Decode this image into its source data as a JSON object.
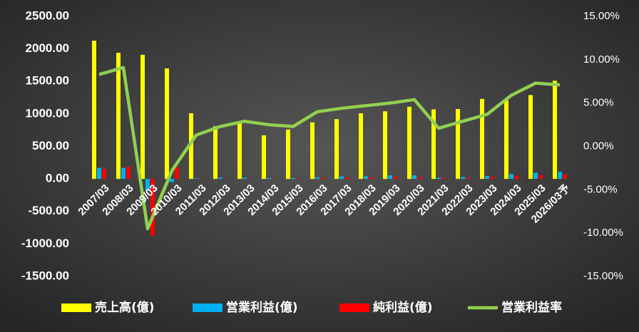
{
  "chart_data": {
    "type": "bar",
    "categories": [
      "2007/03",
      "2008/03",
      "2009/03",
      "2010/03",
      "2011/03",
      "2012/03",
      "2013/03",
      "2014/03",
      "2015/03",
      "2016/03",
      "2017/03",
      "2018/03",
      "2019/03",
      "2020/03",
      "2021/03",
      "2022/03",
      "2023/03",
      "2024/03",
      "2025/03",
      "2026/03予"
    ],
    "series": [
      {
        "name": "売上高(億)",
        "type": "bar",
        "color": "#ffff00",
        "values": [
          2125,
          1940,
          1910,
          1700,
          1010,
          810,
          880,
          670,
          760,
          870,
          920,
          1010,
          1040,
          1110,
          1070,
          1075,
          1230,
          1210,
          1290,
          1510
        ]
      },
      {
        "name": "営業利益(億)",
        "type": "bar",
        "color": "#00b0f0",
        "values": [
          170,
          170,
          -180,
          -50,
          10,
          20,
          20,
          15,
          15,
          25,
          40,
          40,
          55,
          55,
          20,
          30,
          45,
          75,
          95,
          110
        ]
      },
      {
        "name": "純利益(億)",
        "type": "bar",
        "color": "#ff0000",
        "values": [
          155,
          190,
          -870,
          180,
          5,
          5,
          5,
          5,
          10,
          20,
          25,
          25,
          35,
          30,
          15,
          20,
          35,
          50,
          60,
          70
        ]
      },
      {
        "name": "営業利益率",
        "type": "line",
        "axis": "y2",
        "color": "#92d050",
        "values": [
          8.3,
          9.1,
          -9.5,
          -2.8,
          1.3,
          2.3,
          2.9,
          2.5,
          2.3,
          4.0,
          4.4,
          4.7,
          5.0,
          5.4,
          2.1,
          2.9,
          3.7,
          5.9,
          7.3,
          7.1
        ]
      }
    ],
    "ylim": [
      -1500,
      2500
    ],
    "yticks": [
      {
        "value": 2500,
        "label": "2500.00"
      },
      {
        "value": 2000,
        "label": "2000.00"
      },
      {
        "value": 1500,
        "label": "1500.00"
      },
      {
        "value": 1000,
        "label": "1000.00"
      },
      {
        "value": 500,
        "label": "500.00"
      },
      {
        "value": 0,
        "label": "0.00"
      },
      {
        "value": -500,
        "label": "-500.00"
      },
      {
        "value": -1000,
        "label": "-1000.00"
      },
      {
        "value": -1500,
        "label": "-1500.00"
      }
    ],
    "y2lim": [
      -15,
      15
    ],
    "y2ticks": [
      {
        "value": 15,
        "label": "15.00%"
      },
      {
        "value": 10,
        "label": "10.00%"
      },
      {
        "value": 5,
        "label": "5.00%"
      },
      {
        "value": 0,
        "label": "0.00%"
      },
      {
        "value": -5,
        "label": "-5.00%"
      },
      {
        "value": -10,
        "label": "-10.00%"
      },
      {
        "value": -15,
        "label": "-15.00%"
      }
    ],
    "grid": false,
    "legend": "bottom"
  }
}
